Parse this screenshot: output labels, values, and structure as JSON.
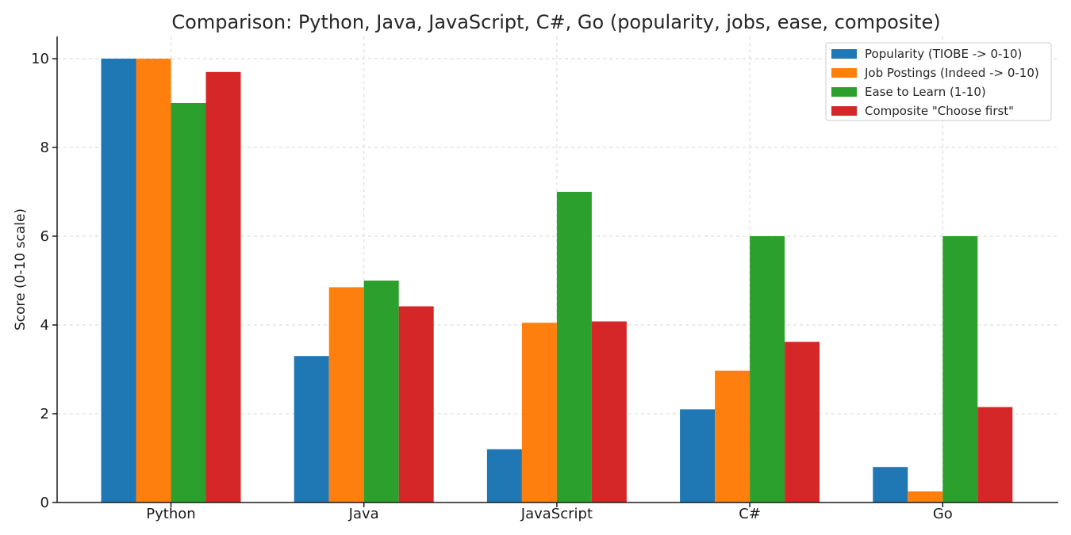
{
  "chart_data": {
    "type": "bar",
    "title": "Comparison: Python, Java, JavaScript, C#, Go (popularity, jobs, ease, composite)",
    "xlabel": "",
    "ylabel": "Score (0-10 scale)",
    "ylim": [
      0,
      10.5
    ],
    "yticks": [
      0,
      2,
      4,
      6,
      8,
      10
    ],
    "grid": true,
    "legend_position": "top-right",
    "categories": [
      "Python",
      "Java",
      "JavaScript",
      "C#",
      "Go"
    ],
    "series": [
      {
        "name": "Popularity (TIOBE -> 0-10)",
        "color": "#1f77b4",
        "values": [
          10.0,
          3.3,
          1.2,
          2.1,
          0.8
        ]
      },
      {
        "name": "Job Postings (Indeed -> 0-10)",
        "color": "#ff7f0e",
        "values": [
          10.0,
          4.85,
          4.05,
          2.97,
          0.25
        ]
      },
      {
        "name": "Ease to Learn (1-10)",
        "color": "#2ca02c",
        "values": [
          9.0,
          5.0,
          7.0,
          6.0,
          6.0
        ]
      },
      {
        "name": "Composite \"Choose first\"",
        "color": "#d62728",
        "values": [
          9.7,
          4.42,
          4.08,
          3.62,
          2.15
        ]
      }
    ]
  }
}
